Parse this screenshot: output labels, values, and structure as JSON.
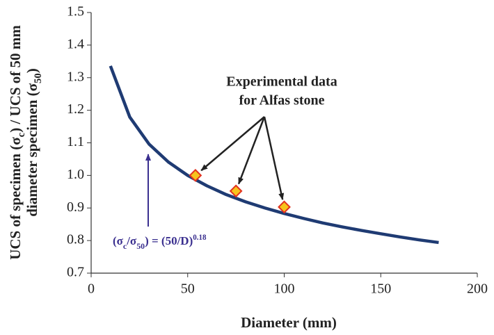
{
  "chart_data": {
    "type": "line",
    "xlabel": "Diameter (mm)",
    "ylabel": [
      [
        {
          "text": "UCS of specimen (σ"
        },
        {
          "sub": "c"
        },
        {
          "text": ") / UCS of 50 mm"
        }
      ],
      [
        {
          "text": "diameter specimen (σ"
        },
        {
          "sub": "50"
        },
        {
          "text": ")"
        }
      ]
    ],
    "x": [
      10,
      20,
      30,
      40,
      50,
      60,
      70,
      80,
      90,
      100,
      110,
      120,
      130,
      140,
      150,
      160,
      170,
      180
    ],
    "series": [
      {
        "color": "#1f3b73",
        "values": [
          1.336,
          1.179,
          1.096,
          1.041,
          1.0,
          0.968,
          0.941,
          0.919,
          0.9,
          0.883,
          0.868,
          0.854,
          0.842,
          0.831,
          0.821,
          0.811,
          0.802,
          0.794
        ]
      }
    ],
    "points": {
      "x": [
        54,
        75,
        100
      ],
      "values": [
        1.0,
        0.952,
        0.903
      ],
      "color": "#f7c31c",
      "edgecolor": "#e2321f"
    },
    "annotations": {
      "experimental": [
        "Experimental data",
        "for Alfas stone"
      ],
      "equation": [
        {
          "text": "(σ"
        },
        {
          "sub": "c"
        },
        {
          "text": "/σ"
        },
        {
          "sub": "50"
        },
        {
          "text": ") = (50/D)"
        },
        {
          "sup": "0.18"
        }
      ]
    },
    "xlim": [
      0,
      200
    ],
    "xticks": [
      0,
      50,
      100,
      150,
      200
    ],
    "ylim": [
      0.7,
      1.5
    ],
    "yticks": [
      0.7,
      0.8,
      0.9,
      {
        "value": 1,
        "label": "1.0"
      },
      1.1,
      1.2,
      1.3,
      1.4,
      1.5
    ],
    "grid": false
  }
}
